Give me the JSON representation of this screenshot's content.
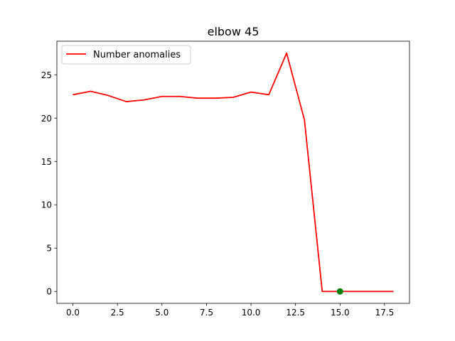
{
  "chart_data": {
    "type": "line",
    "title": "elbow 45",
    "xlabel": "",
    "ylabel": "",
    "xlim": [
      -0.9,
      18.9
    ],
    "ylim": [
      -1.375,
      28.875
    ],
    "xticks": [
      0.0,
      2.5,
      5.0,
      7.5,
      10.0,
      12.5,
      15.0,
      17.5
    ],
    "xtick_labels": [
      "0.0",
      "2.5",
      "5.0",
      "7.5",
      "10.0",
      "12.5",
      "15.0",
      "17.5"
    ],
    "yticks": [
      0,
      5,
      10,
      15,
      20,
      25
    ],
    "ytick_labels": [
      "0",
      "5",
      "10",
      "15",
      "20",
      "25"
    ],
    "grid": false,
    "legend_position": "top-left",
    "series": [
      {
        "name": "Number anomalies",
        "color": "#ff0000",
        "x": [
          0,
          1,
          2,
          3,
          4,
          5,
          6,
          7,
          8,
          9,
          10,
          11,
          12,
          13,
          14,
          15,
          16,
          17,
          18
        ],
        "y": [
          22.7,
          23.1,
          22.6,
          21.9,
          22.1,
          22.5,
          22.5,
          22.3,
          22.3,
          22.4,
          23.0,
          22.7,
          27.5,
          19.8,
          0,
          0,
          0,
          0,
          0
        ]
      }
    ],
    "markers": [
      {
        "x": 15,
        "y": 0,
        "color": "#008000"
      }
    ]
  }
}
